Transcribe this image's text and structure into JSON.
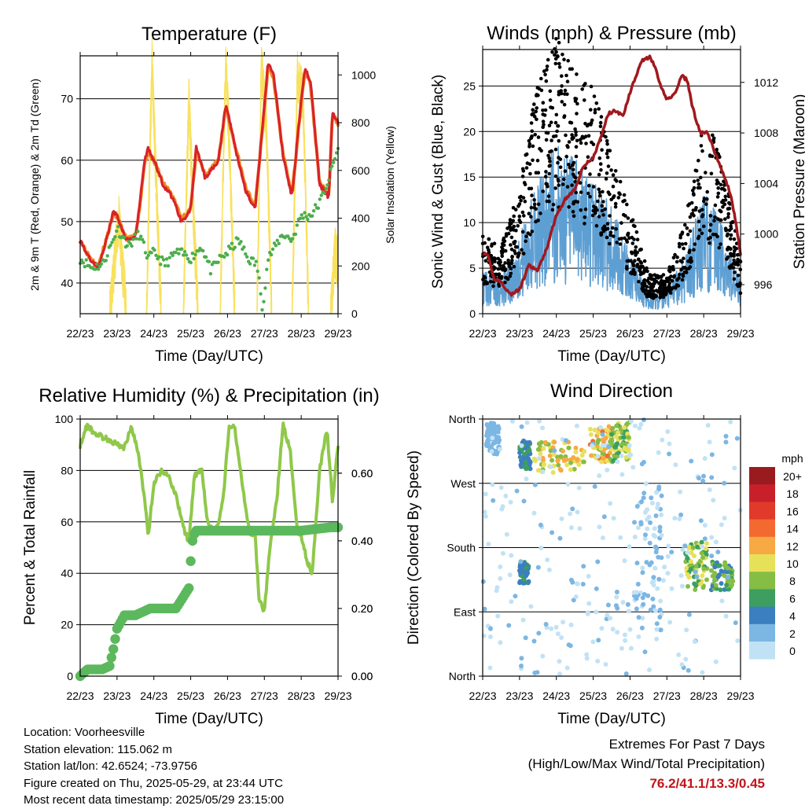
{
  "colors": {
    "temp2m": "#d8232a",
    "temp9m": "#f28a22",
    "dewpoint": "#4cae4c",
    "solar": "#f8e15e",
    "wind": "#5e9fd3",
    "gust": "#000000",
    "pressure": "#a0191e",
    "rh": "#8fc84a",
    "precip": "#5cb85c",
    "extremes": "#c0141b"
  },
  "chart_data": [
    {
      "id": "temperature",
      "type": "line",
      "title": "Temperature (F)",
      "xlabel": "Time (Day/UTC)",
      "ylabel": "2m & 9m T (Red, Orange) & 2m Td (Green)",
      "y2label": "Solar Insolation (Yellow)",
      "x_ticks": [
        "22/23",
        "23/23",
        "24/23",
        "25/23",
        "26/23",
        "27/23",
        "28/23",
        "29/23"
      ],
      "xlim": [
        0,
        7
      ],
      "ylim": [
        35,
        77
      ],
      "y_ticks": [
        40,
        50,
        60,
        70
      ],
      "y2lim": [
        0,
        1080
      ],
      "y2_ticks": [
        0,
        200,
        400,
        600,
        800,
        1000
      ],
      "grid": true,
      "series": [
        {
          "key": "t2m",
          "x": [
            0,
            0.25,
            0.5,
            0.75,
            0.9,
            1.0,
            1.25,
            1.5,
            1.6,
            1.75,
            1.85,
            2.0,
            2.25,
            2.5,
            2.75,
            3.0,
            3.15,
            3.4,
            3.75,
            3.95,
            4.0,
            4.25,
            4.5,
            4.75,
            5.0,
            5.1,
            5.25,
            5.5,
            5.75,
            6.0,
            6.1,
            6.25,
            6.5,
            6.75,
            6.85,
            7.0
          ],
          "y": [
            47,
            44,
            42.5,
            48,
            51.5,
            51,
            47,
            47.5,
            52,
            60,
            62,
            60,
            56,
            54,
            50,
            52,
            62,
            57,
            60,
            69,
            68,
            61,
            55,
            52,
            69,
            76,
            74,
            61,
            54,
            70,
            75,
            73,
            56,
            54,
            68,
            66
          ]
        },
        {
          "key": "t9m",
          "x": [
            0,
            0.25,
            0.5,
            0.75,
            0.9,
            1.0,
            1.25,
            1.5,
            1.6,
            1.75,
            1.85,
            2.0,
            2.25,
            2.5,
            2.75,
            3.0,
            3.15,
            3.4,
            3.75,
            3.95,
            4.0,
            4.25,
            4.5,
            4.75,
            5.0,
            5.1,
            5.25,
            5.5,
            5.75,
            6.0,
            6.1,
            6.25,
            6.5,
            6.75,
            6.85,
            7.0
          ],
          "y": [
            47,
            44.3,
            42.8,
            48,
            51.2,
            50.8,
            47.3,
            47.6,
            51.5,
            59.5,
            61.5,
            60,
            56.3,
            54.3,
            50.5,
            52,
            61.5,
            57.3,
            60,
            68.5,
            67.5,
            61.3,
            55.4,
            52.4,
            68.5,
            75.5,
            73.5,
            61.3,
            54.3,
            69.5,
            74.5,
            72.5,
            56.3,
            54.3,
            67.5,
            66
          ]
        },
        {
          "key": "td2m",
          "x": [
            0,
            0.3,
            0.6,
            0.9,
            1.0,
            1.3,
            1.6,
            1.85,
            2.0,
            2.3,
            2.6,
            2.9,
            3.0,
            3.3,
            3.55,
            3.8,
            4.0,
            4.3,
            4.55,
            4.8,
            4.95,
            5.1,
            5.3,
            5.5,
            5.75,
            6.0,
            6.25,
            6.5,
            6.75,
            7.0
          ],
          "y": [
            44,
            42.5,
            43,
            47,
            49,
            46,
            48,
            44,
            45,
            43,
            45,
            44.5,
            44,
            46,
            42,
            44,
            45,
            47,
            44,
            43,
            36,
            44,
            46,
            48,
            47,
            51,
            51,
            53,
            57,
            62
          ]
        },
        {
          "key": "solar",
          "points": [
            [
              0.0,
              0
            ],
            [
              0.8,
              0
            ],
            [
              1.05,
              400
            ],
            [
              1.25,
              0
            ],
            [
              1.8,
              0
            ],
            [
              1.95,
              1050
            ],
            [
              2.05,
              600
            ],
            [
              2.2,
              0
            ],
            [
              2.8,
              0
            ],
            [
              2.95,
              900
            ],
            [
              3.05,
              500
            ],
            [
              3.2,
              0
            ],
            [
              3.8,
              0
            ],
            [
              3.95,
              1080
            ],
            [
              4.05,
              700
            ],
            [
              4.2,
              0
            ],
            [
              4.8,
              0
            ],
            [
              4.92,
              1040
            ],
            [
              5.05,
              800
            ],
            [
              5.2,
              0
            ],
            [
              5.75,
              0
            ],
            [
              5.9,
              1000
            ],
            [
              6.05,
              900
            ],
            [
              6.2,
              0
            ],
            [
              6.8,
              0
            ],
            [
              6.92,
              260
            ],
            [
              7.0,
              200
            ]
          ]
        }
      ]
    },
    {
      "id": "winds",
      "type": "scatter",
      "title": "Winds (mph) & Pressure (mb)",
      "xlabel": "Time (Day/UTC)",
      "ylabel": "Sonic Wind & Gust (Blue, Black)",
      "y2label": "Station Pressure (Maroon)",
      "x_ticks": [
        "22/23",
        "23/23",
        "24/23",
        "25/23",
        "26/23",
        "27/23",
        "28/23",
        "29/23"
      ],
      "xlim": [
        0,
        7
      ],
      "ylim": [
        0,
        29
      ],
      "y_ticks": [
        0,
        5,
        10,
        15,
        20,
        25
      ],
      "y2lim": [
        993.7,
        1014.6
      ],
      "y2_ticks": [
        996,
        1000,
        1004,
        1008,
        1012
      ],
      "grid": true,
      "series": [
        {
          "key": "gust_envelope",
          "x": [
            0,
            0.5,
            1.0,
            1.5,
            2.0,
            2.5,
            3.0,
            3.5,
            4.0,
            4.5,
            5.0,
            5.5,
            6.0,
            6.5,
            7.0
          ],
          "y": [
            6,
            5,
            10,
            18,
            21,
            19,
            17,
            13,
            8,
            3,
            3,
            7,
            15,
            12,
            4
          ]
        },
        {
          "key": "wind_envelope",
          "x": [
            0,
            0.5,
            1.0,
            1.5,
            2.0,
            2.5,
            3.0,
            3.5,
            4.0,
            4.5,
            5.0,
            5.5,
            6.0,
            6.5,
            7.0
          ],
          "y": [
            3,
            2.5,
            5,
            9,
            11,
            10,
            9,
            7,
            4,
            1.5,
            1.5,
            4,
            8,
            6,
            2
          ]
        },
        {
          "key": "pressure",
          "x": [
            0,
            0.15,
            0.3,
            0.5,
            0.75,
            1.0,
            1.25,
            1.5,
            1.75,
            2.0,
            2.25,
            2.5,
            2.75,
            3.0,
            3.25,
            3.4,
            3.6,
            3.8,
            4.0,
            4.3,
            4.55,
            4.7,
            4.85,
            5.0,
            5.2,
            5.4,
            5.55,
            5.7,
            5.9,
            6.1,
            6.3,
            6.5,
            6.75,
            7.0
          ],
          "y": [
            998.5,
            998.2,
            996.5,
            996.2,
            995.2,
            995.6,
            997.5,
            997.1,
            999.0,
            1001.5,
            1002.8,
            1003.5,
            1005.5,
            1006.0,
            1008.0,
            1009.5,
            1009.8,
            1009.3,
            1011.2,
            1013.7,
            1014.0,
            1013.0,
            1011.5,
            1010.7,
            1011.0,
            1012.5,
            1012.2,
            1010.0,
            1008.0,
            1008.0,
            1006.5,
            1005.0,
            1003.0,
            998.5
          ]
        }
      ]
    },
    {
      "id": "humidity",
      "type": "line",
      "title": "Relative Humidity (%) & Precipitation (in)",
      "xlabel": "Time (Day/UTC)",
      "ylabel": "Percent & Total Rainfall",
      "x_ticks": [
        "22/23",
        "23/23",
        "24/23",
        "25/23",
        "26/23",
        "27/23",
        "28/23",
        "29/23"
      ],
      "xlim": [
        0,
        7
      ],
      "ylim": [
        0,
        100
      ],
      "y_ticks": [
        0,
        20,
        40,
        60,
        80,
        100
      ],
      "y2lim": [
        0,
        0.76
      ],
      "y2_ticks": [
        "0.00",
        "0.20",
        "0.40",
        "0.60"
      ],
      "grid": true,
      "series": [
        {
          "key": "rh",
          "x": [
            0,
            0.2,
            0.35,
            0.6,
            0.8,
            1.0,
            1.2,
            1.4,
            1.6,
            1.75,
            1.85,
            2.0,
            2.2,
            2.4,
            2.6,
            2.8,
            2.95,
            3.1,
            3.3,
            3.45,
            3.6,
            3.75,
            3.9,
            4.05,
            4.2,
            4.4,
            4.6,
            4.75,
            4.85,
            5.0,
            5.15,
            5.35,
            5.5,
            5.7,
            5.9,
            6.0,
            6.15,
            6.3,
            6.5,
            6.7,
            6.85,
            7.0
          ],
          "y": [
            90,
            98,
            95,
            93,
            92,
            90,
            89,
            97,
            85,
            68,
            55,
            75,
            80,
            78,
            70,
            58,
            52,
            78,
            80,
            60,
            57,
            58,
            72,
            98,
            96,
            75,
            55,
            56,
            30,
            25,
            50,
            70,
            98,
            88,
            56,
            55,
            45,
            40,
            80,
            96,
            68,
            90
          ]
        },
        {
          "key": "precip",
          "x": [
            0,
            0.2,
            0.4,
            0.6,
            0.8,
            0.9,
            1.0,
            1.1,
            1.2,
            1.3,
            1.5,
            1.7,
            1.9,
            2.1,
            2.3,
            2.6,
            2.95,
            3.0,
            3.05,
            3.1,
            3.15,
            3.5,
            4.0,
            5.0,
            6.0,
            6.8,
            7.0
          ],
          "y": [
            0,
            0.02,
            0.02,
            0.02,
            0.03,
            0.08,
            0.14,
            0.16,
            0.18,
            0.18,
            0.18,
            0.19,
            0.2,
            0.2,
            0.2,
            0.2,
            0.26,
            0.34,
            0.4,
            0.42,
            0.43,
            0.43,
            0.43,
            0.43,
            0.43,
            0.44,
            0.44
          ]
        }
      ]
    },
    {
      "id": "direction",
      "type": "scatter",
      "title": "Wind Direction",
      "xlabel": "Time (Day/UTC)",
      "ylabel": "Direction (Colored By Speed)",
      "x_ticks": [
        "22/23",
        "23/23",
        "24/23",
        "25/23",
        "26/23",
        "27/23",
        "28/23",
        "29/23"
      ],
      "xlim": [
        0,
        7
      ],
      "ylim": [
        0,
        360
      ],
      "y_ticks": [
        "North",
        "East",
        "South",
        "West",
        "North"
      ],
      "grid": true,
      "legend": {
        "title": "mph",
        "labels": [
          "20+",
          "18",
          "16",
          "14",
          "12",
          "10",
          "8",
          "6",
          "4",
          "2",
          "0"
        ],
        "colors": [
          "#9a1b1e",
          "#c8202b",
          "#e03a2b",
          "#f26a30",
          "#f7a944",
          "#e7e15a",
          "#86bd45",
          "#3c9f5f",
          "#3c7fbf",
          "#7cb6e3",
          "#c1e2f5"
        ]
      },
      "clusters": [
        {
          "x": [
            0.1,
            0.45
          ],
          "dir": [
            310,
            355
          ],
          "speed": [
            2,
            4
          ]
        },
        {
          "x": [
            1.0,
            1.3
          ],
          "dir": [
            290,
            330
          ],
          "speed": [
            4,
            8
          ]
        },
        {
          "x": [
            1.4,
            2.8
          ],
          "dir": [
            285,
            330
          ],
          "speed": [
            8,
            14
          ]
        },
        {
          "x": [
            2.9,
            3.5
          ],
          "dir": [
            300,
            350
          ],
          "speed": [
            8,
            16
          ]
        },
        {
          "x": [
            3.5,
            4.0
          ],
          "dir": [
            300,
            360
          ],
          "speed": [
            6,
            12
          ]
        },
        {
          "x": [
            4.1,
            4.9
          ],
          "dir": [
            60,
            260
          ],
          "speed": [
            1,
            4
          ]
        },
        {
          "x": [
            5.5,
            6.1
          ],
          "dir": [
            120,
            190
          ],
          "speed": [
            6,
            12
          ]
        },
        {
          "x": [
            6.2,
            6.8
          ],
          "dir": [
            120,
            160
          ],
          "speed": [
            4,
            10
          ]
        },
        {
          "x": [
            1.0,
            1.25
          ],
          "dir": [
            130,
            160
          ],
          "speed": [
            4,
            7
          ]
        },
        {
          "x": [
            0.0,
            7.0
          ],
          "dir": [
            0,
            360
          ],
          "speed": [
            0,
            3
          ]
        }
      ]
    }
  ],
  "footer": {
    "location": "Location: Voorheesville",
    "elevation": "Station elevation: 115.062 m",
    "latlon": "Station lat/lon: 42.6524; -73.9756",
    "created": "Figure created on Thu, 2025-05-29, at 23:44 UTC",
    "recent": "Most recent data timestamp: 2025/05/29 23:15:00"
  },
  "extremes": {
    "title": "Extremes For Past 7 Days",
    "subtitle": "(High/Low/Max Wind/Total Precipitation)",
    "values": "76.2/41.1/13.3/0.45"
  }
}
